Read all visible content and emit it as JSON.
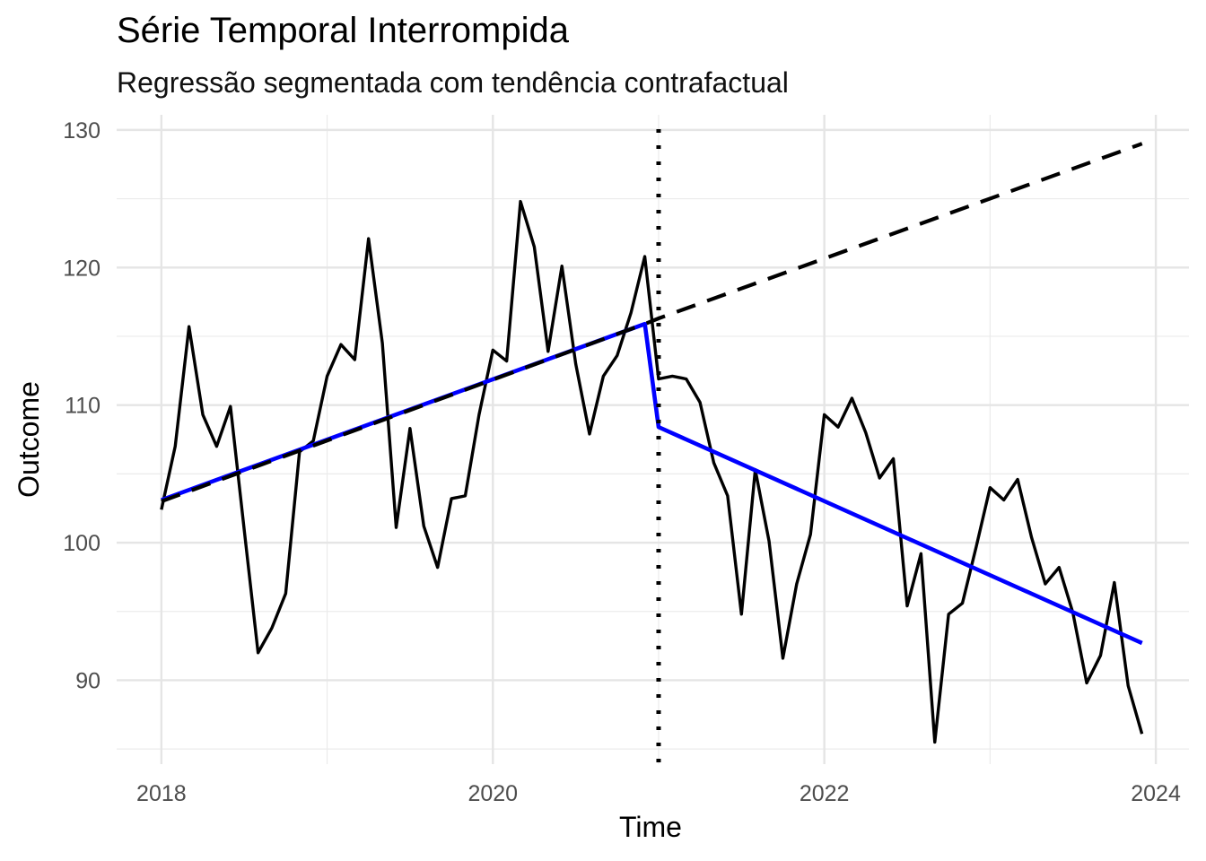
{
  "chart_data": {
    "type": "line",
    "title": "Série Temporal Interrompida",
    "subtitle": "Regressão segmentada com tendência contrafactual",
    "xlabel": "Time",
    "ylabel": "Outcome",
    "xlim": [
      2017.73,
      2024.2
    ],
    "ylim": [
      83.9,
      131.1
    ],
    "x_ticks": [
      2018,
      2020,
      2022,
      2024
    ],
    "y_ticks": [
      90,
      100,
      110,
      120,
      130
    ],
    "grid": true,
    "legend": "none",
    "intervention": 2021.0,
    "series": [
      {
        "role": "observed",
        "color": "#000000",
        "style": "solid",
        "x_start": 2018.0,
        "x_step": 0.08333,
        "values": [
          102.4,
          107.0,
          115.7,
          109.3,
          107.0,
          109.9,
          100.9,
          92.0,
          93.8,
          96.3,
          106.6,
          107.4,
          112.1,
          114.4,
          113.3,
          122.1,
          114.5,
          101.1,
          108.3,
          101.2,
          98.2,
          103.2,
          103.4,
          109.3,
          114.0,
          113.2,
          124.8,
          121.5,
          113.9,
          120.1,
          113.0,
          107.9,
          112.1,
          113.6,
          116.7,
          120.8,
          111.9,
          112.1,
          111.9,
          110.2,
          105.8,
          103.4,
          94.8,
          105.3,
          100.1,
          91.6,
          97.0,
          100.6,
          109.3,
          108.4,
          110.5,
          108.0,
          104.7,
          106.1,
          95.4,
          99.2,
          85.5,
          94.8,
          95.6,
          99.7,
          104.0,
          103.1,
          104.6,
          100.4,
          97.0,
          98.2,
          94.9,
          89.8,
          91.8,
          97.1,
          89.6,
          86.1
        ]
      },
      {
        "role": "fitted",
        "color": "#0000ff",
        "style": "solid",
        "points": [
          [
            2018.0,
            103.1
          ],
          [
            2020.917,
            115.9
          ],
          [
            2021.0,
            108.4
          ],
          [
            2023.917,
            92.7
          ]
        ]
      },
      {
        "role": "counterfactual",
        "color": "#000000",
        "style": "dashed",
        "points": [
          [
            2018.0,
            103.0
          ],
          [
            2020.917,
            115.9
          ],
          [
            2021.0,
            116.3
          ],
          [
            2023.917,
            129.0
          ]
        ]
      }
    ]
  }
}
